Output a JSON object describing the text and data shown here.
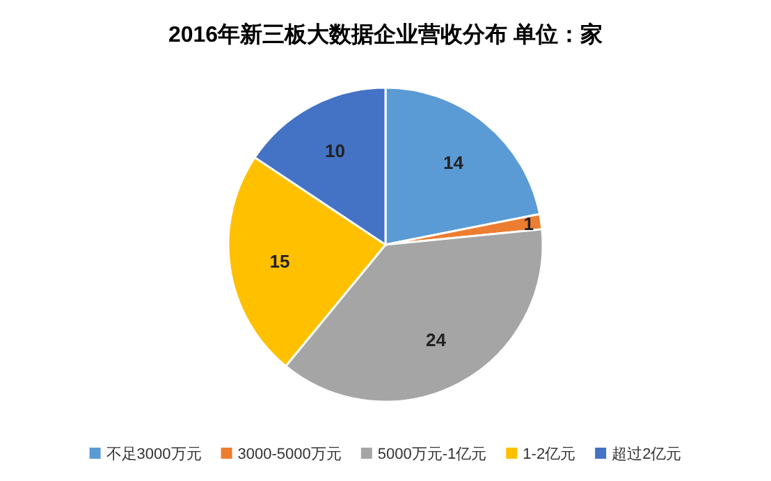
{
  "chart_data": {
    "type": "pie",
    "title": "2016年新三板大数据企业营收分布  单位：家",
    "categories": [
      "不足3000万元",
      "3000-5000万元",
      "5000万元-1亿元",
      "1-2亿元",
      "超过2亿元"
    ],
    "values": [
      14,
      1,
      24,
      15,
      10
    ],
    "colors": [
      "#5b9bd5",
      "#ed7d31",
      "#a5a5a5",
      "#ffc000",
      "#4472c4"
    ],
    "data_labels": true,
    "legend": "bottom"
  }
}
